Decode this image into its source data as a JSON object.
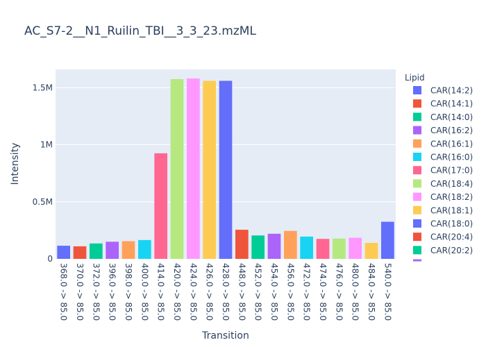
{
  "chart_data": {
    "type": "bar",
    "title": "AC_S7-2__N1_Ruilin_TBI__3_3_23.mzML",
    "xlabel": "Transition",
    "ylabel": "Intensity",
    "legend_title": "Lipid",
    "legend_position": "right",
    "grid": true,
    "ylim": [
      0,
      1660000
    ],
    "yticks": [
      {
        "value": 0,
        "label": "0"
      },
      {
        "value": 500000,
        "label": "0.5M"
      },
      {
        "value": 1000000,
        "label": "1M"
      },
      {
        "value": 1500000,
        "label": "1.5M"
      }
    ],
    "categories": [
      "368.0 -> 85.0",
      "370.0 -> 85.0",
      "372.0 -> 85.0",
      "396.0 -> 85.0",
      "398.0 -> 85.0",
      "400.0 -> 85.0",
      "414.0 -> 85.0",
      "420.0 -> 85.0",
      "424.0 -> 85.0",
      "426.0 -> 85.0",
      "428.0 -> 85.0",
      "448.0 -> 85.0",
      "452.0 -> 85.0",
      "454.0 -> 85.0",
      "456.0 -> 85.0",
      "472.0 -> 85.0",
      "474.0 -> 85.0",
      "476.0 -> 85.0",
      "480.0 -> 85.0",
      "484.0 -> 85.0",
      "540.0 -> 85.0"
    ],
    "series": [
      {
        "name": "CAR(14:2)",
        "color": "#636efa",
        "category": "368.0 -> 85.0",
        "value": 115000
      },
      {
        "name": "CAR(14:1)",
        "color": "#EF553B",
        "category": "370.0 -> 85.0",
        "value": 110000
      },
      {
        "name": "CAR(14:0)",
        "color": "#00cc96",
        "category": "372.0 -> 85.0",
        "value": 135000
      },
      {
        "name": "CAR(16:2)",
        "color": "#ab63fa",
        "category": "396.0 -> 85.0",
        "value": 150000
      },
      {
        "name": "CAR(16:1)",
        "color": "#FFA15A",
        "category": "398.0 -> 85.0",
        "value": 155000
      },
      {
        "name": "CAR(16:0)",
        "color": "#19d3f3",
        "category": "400.0 -> 85.0",
        "value": 165000
      },
      {
        "name": "CAR(17:0)",
        "color": "#FF6692",
        "category": "414.0 -> 85.0",
        "value": 925000
      },
      {
        "name": "CAR(18:4)",
        "color": "#B6E880",
        "category": "420.0 -> 85.0",
        "value": 1575000
      },
      {
        "name": "CAR(18:2)",
        "color": "#FF97FF",
        "category": "424.0 -> 85.0",
        "value": 1580000
      },
      {
        "name": "CAR(18:1)",
        "color": "#FECB52",
        "category": "426.0 -> 85.0",
        "value": 1560000
      },
      {
        "name": "CAR(18:0)",
        "color": "#636efa",
        "category": "428.0 -> 85.0",
        "value": 1560000
      },
      {
        "name": "CAR(20:4)",
        "color": "#EF553B",
        "category": "448.0 -> 85.0",
        "value": 255000
      },
      {
        "name": "CAR(20:2)",
        "color": "#00cc96",
        "category": "452.0 -> 85.0",
        "value": 205000
      },
      {
        "name": "",
        "color": "#ab63fa",
        "category": "454.0 -> 85.0",
        "value": 220000
      },
      {
        "name": "",
        "color": "#FFA15A",
        "category": "456.0 -> 85.0",
        "value": 245000
      },
      {
        "name": "",
        "color": "#19d3f3",
        "category": "472.0 -> 85.0",
        "value": 195000
      },
      {
        "name": "",
        "color": "#FF6692",
        "category": "474.0 -> 85.0",
        "value": 175000
      },
      {
        "name": "",
        "color": "#B6E880",
        "category": "476.0 -> 85.0",
        "value": 178000
      },
      {
        "name": "",
        "color": "#FF97FF",
        "category": "480.0 -> 85.0",
        "value": 185000
      },
      {
        "name": "",
        "color": "#FECB52",
        "category": "484.0 -> 85.0",
        "value": 140000
      },
      {
        "name": "",
        "color": "#636efa",
        "category": "540.0 -> 85.0",
        "value": 325000
      }
    ],
    "legend_visible_count": 13
  }
}
